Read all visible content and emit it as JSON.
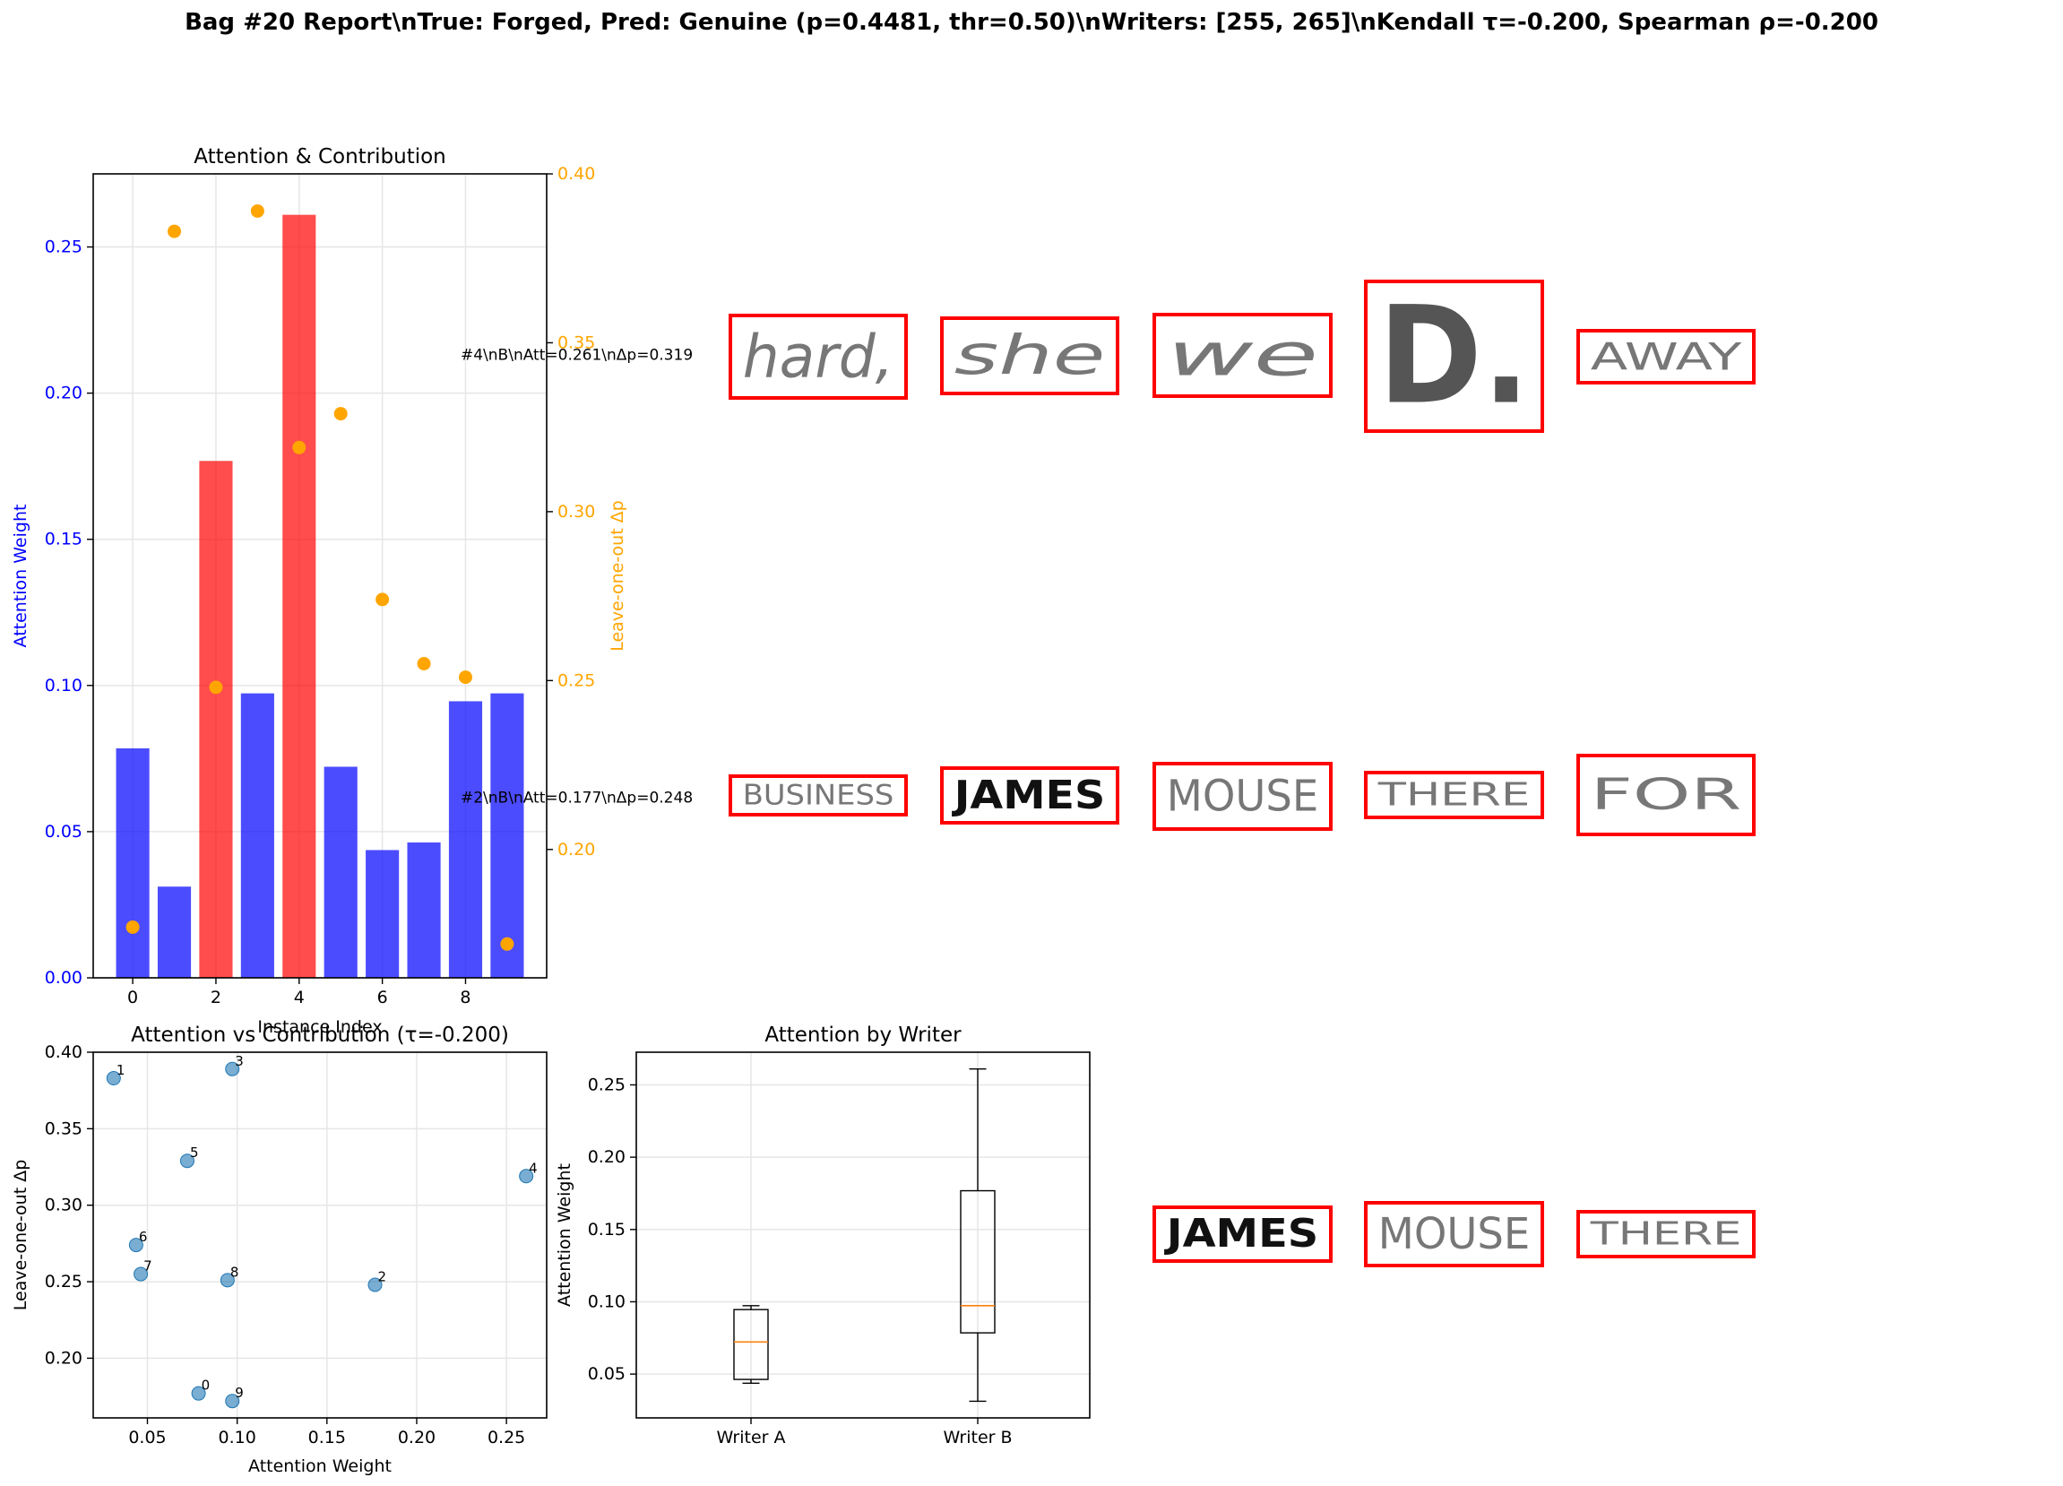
{
  "suptitle": "Bag #20 Report\\nTrue: Forged, Pred: Genuine (p=0.4481, thr=0.50)\\nWriters: [255, 265]\\nKendall τ=-0.200, Spearman ρ=-0.200",
  "colors": {
    "blue": "#0000ff",
    "red": "#ff0000",
    "orange": "#ffa500",
    "scatter": "#1f77b4",
    "median": "#ff7f0e",
    "grid": "#e6e6e6",
    "frame": "#ff0000"
  },
  "chart_data": [
    {
      "type": "bar",
      "title": "Attention & Contribution",
      "xlabel": "Instance Index",
      "ylabel": "Attention Weight",
      "y2label": "Leave-one-out Δp",
      "x": [
        0,
        1,
        2,
        3,
        4,
        5,
        6,
        7,
        8,
        9
      ],
      "xticks": [
        0,
        2,
        4,
        6,
        8
      ],
      "attention": [
        0.0785,
        0.0312,
        0.1768,
        0.0973,
        0.261,
        0.0722,
        0.0437,
        0.0463,
        0.0946,
        0.0973
      ],
      "highlight": [
        false,
        false,
        true,
        false,
        true,
        false,
        false,
        false,
        false,
        false
      ],
      "delta_p": [
        0.177,
        0.383,
        0.248,
        0.389,
        0.319,
        0.329,
        0.274,
        0.255,
        0.251,
        0.172
      ],
      "ylim": [
        0,
        0.275
      ],
      "yticks": [
        "0.00",
        "0.05",
        "0.10",
        "0.15",
        "0.20",
        "0.25"
      ],
      "y2lim": [
        0.162,
        0.4
      ],
      "y2ticks": [
        "0.20",
        "0.25",
        "0.30",
        "0.35",
        "0.40"
      ],
      "annotations": [
        {
          "text": "#4\\nB\\nAtt=0.261\\nΔp=0.319",
          "y2": 0.3465
        },
        {
          "text": "#2\\nB\\nAtt=0.177\\nΔp=0.248",
          "y2": 0.2155
        }
      ]
    },
    {
      "type": "scatter",
      "title": "Attention vs Contribution (τ=-0.200)",
      "xlabel": "Attention Weight",
      "ylabel": "Leave-one-out Δp",
      "points": [
        {
          "label": "0",
          "x": 0.0785,
          "y": 0.177
        },
        {
          "label": "1",
          "x": 0.0312,
          "y": 0.383
        },
        {
          "label": "2",
          "x": 0.1768,
          "y": 0.248
        },
        {
          "label": "3",
          "x": 0.0973,
          "y": 0.389
        },
        {
          "label": "4",
          "x": 0.261,
          "y": 0.319
        },
        {
          "label": "5",
          "x": 0.0722,
          "y": 0.329
        },
        {
          "label": "6",
          "x": 0.0437,
          "y": 0.274
        },
        {
          "label": "7",
          "x": 0.0463,
          "y": 0.255
        },
        {
          "label": "8",
          "x": 0.0946,
          "y": 0.251
        },
        {
          "label": "9",
          "x": 0.0973,
          "y": 0.172
        }
      ],
      "xlim": [
        0.0198,
        0.2724
      ],
      "xticks": [
        "0.05",
        "0.10",
        "0.15",
        "0.20",
        "0.25"
      ],
      "ylim": [
        0.161,
        0.4
      ],
      "yticks": [
        "0.20",
        "0.25",
        "0.30",
        "0.35",
        "0.40"
      ]
    },
    {
      "type": "box",
      "title": "Attention by Writer",
      "ylabel": "Attention Weight",
      "categories": [
        "Writer A",
        "Writer B"
      ],
      "boxes": [
        {
          "min": 0.0437,
          "q1": 0.0463,
          "median": 0.0722,
          "q3": 0.0946,
          "max": 0.0973
        },
        {
          "min": 0.0312,
          "q1": 0.0785,
          "median": 0.0973,
          "q3": 0.1768,
          "max": 0.261
        }
      ],
      "ylim": [
        0.0197,
        0.2726
      ],
      "yticks": [
        "0.05",
        "0.10",
        "0.15",
        "0.20",
        "0.25"
      ]
    }
  ],
  "thumbnails": [
    {
      "word": "hard,",
      "style": "cursive"
    },
    {
      "word": "she",
      "style": "cursive"
    },
    {
      "word": "we",
      "style": "cursive"
    },
    {
      "word": "D.",
      "style": "bold"
    },
    {
      "word": "AWAY",
      "style": "caps"
    },
    {
      "word": "BUSINESS",
      "style": "caps"
    },
    {
      "word": "JAMES",
      "style": "ink"
    },
    {
      "word": "MOUSE",
      "style": "caps"
    },
    {
      "word": "THERE",
      "style": "caps"
    },
    {
      "word": "FOR",
      "style": "caps"
    },
    {
      "word": "JAMES",
      "style": "ink"
    },
    {
      "word": "MOUSE",
      "style": "caps"
    },
    {
      "word": "THERE",
      "style": "caps"
    }
  ]
}
